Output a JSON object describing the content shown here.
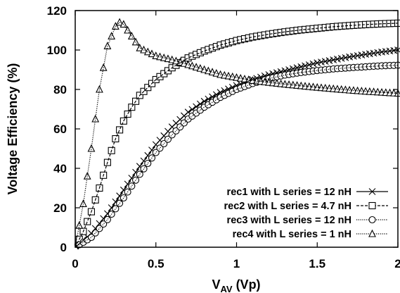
{
  "chart_data": {
    "type": "line",
    "xlabel": "V",
    "xlabel_subscript": "AV",
    "xlabel_unit": " (Vp)",
    "ylabel": "Voltage Efficiency (%)",
    "xlim": [
      0,
      2
    ],
    "ylim": [
      0,
      120
    ],
    "x_ticks": [
      0,
      0.5,
      1,
      1.5,
      2
    ],
    "x_tick_labels": [
      "0",
      "0.5",
      "1",
      "1.5",
      "2"
    ],
    "y_ticks": [
      0,
      20,
      40,
      60,
      80,
      100,
      120
    ],
    "y_tick_labels": [
      "0",
      "20",
      "40",
      "60",
      "80",
      "100",
      "120"
    ],
    "grid": false,
    "legend_position": "bottom-right",
    "series": [
      {
        "name": "rec1 with L series = 12 nH",
        "marker": "cross",
        "line_style": "solid",
        "x": [
          0,
          0.1,
          0.2,
          0.3,
          0.4,
          0.5,
          0.6,
          0.7,
          0.8,
          0.9,
          1.0,
          1.1,
          1.2,
          1.3,
          1.4,
          1.5,
          1.6,
          1.7,
          1.8,
          1.9,
          2.0
        ],
        "values": [
          0,
          7,
          17,
          29,
          41,
          52,
          61,
          68.5,
          74,
          78.5,
          82,
          85,
          87.5,
          89.5,
          91.5,
          93.5,
          95,
          96.5,
          97.8,
          99,
          100
        ]
      },
      {
        "name": "rec2 with L series = 4.7 nH",
        "marker": "square",
        "line_style": "dashed",
        "x": [
          0,
          0.05,
          0.1,
          0.15,
          0.2,
          0.25,
          0.3,
          0.35,
          0.4,
          0.5,
          0.6,
          0.7,
          0.8,
          0.9,
          1.0,
          1.1,
          1.2,
          1.3,
          1.4,
          1.5,
          1.6,
          1.7,
          1.8,
          1.9,
          2.0
        ],
        "values": [
          0,
          8,
          18,
          30,
          43,
          55,
          64,
          71,
          77,
          85,
          91,
          96,
          99.5,
          102.5,
          104.8,
          106.6,
          108,
          109.2,
          110.2,
          111,
          111.8,
          112.4,
          112.9,
          113.3,
          113.6
        ]
      },
      {
        "name": "rec3 with L series = 12 nH",
        "marker": "circle",
        "line_style": "dotted",
        "x": [
          0,
          0.1,
          0.2,
          0.3,
          0.4,
          0.5,
          0.6,
          0.7,
          0.8,
          0.9,
          1.0,
          1.1,
          1.2,
          1.3,
          1.4,
          1.5,
          1.6,
          1.7,
          1.8,
          1.9,
          2.0
        ],
        "values": [
          0,
          5,
          14,
          25,
          37,
          48,
          57,
          65,
          71,
          76,
          80,
          83,
          85.5,
          87.3,
          88.6,
          89.6,
          90.4,
          91,
          91.5,
          92,
          92.3
        ]
      },
      {
        "name": "rec4 with L series = 1 nH",
        "marker": "triangle",
        "line_style": "dotted",
        "x": [
          0,
          0.05,
          0.1,
          0.15,
          0.2,
          0.25,
          0.275,
          0.3,
          0.35,
          0.4,
          0.5,
          0.6,
          0.7,
          0.8,
          0.9,
          1.0,
          1.1,
          1.2,
          1.3,
          1.4,
          1.5,
          1.6,
          1.7,
          1.8,
          1.9,
          2.0
        ],
        "values": [
          0,
          22,
          50,
          80,
          102,
          112,
          114,
          113,
          107,
          101,
          97,
          95,
          92.5,
          90,
          87.5,
          86,
          84.5,
          83.5,
          82.6,
          81.8,
          81,
          80.3,
          79.6,
          79,
          78.5,
          78
        ]
      }
    ]
  }
}
